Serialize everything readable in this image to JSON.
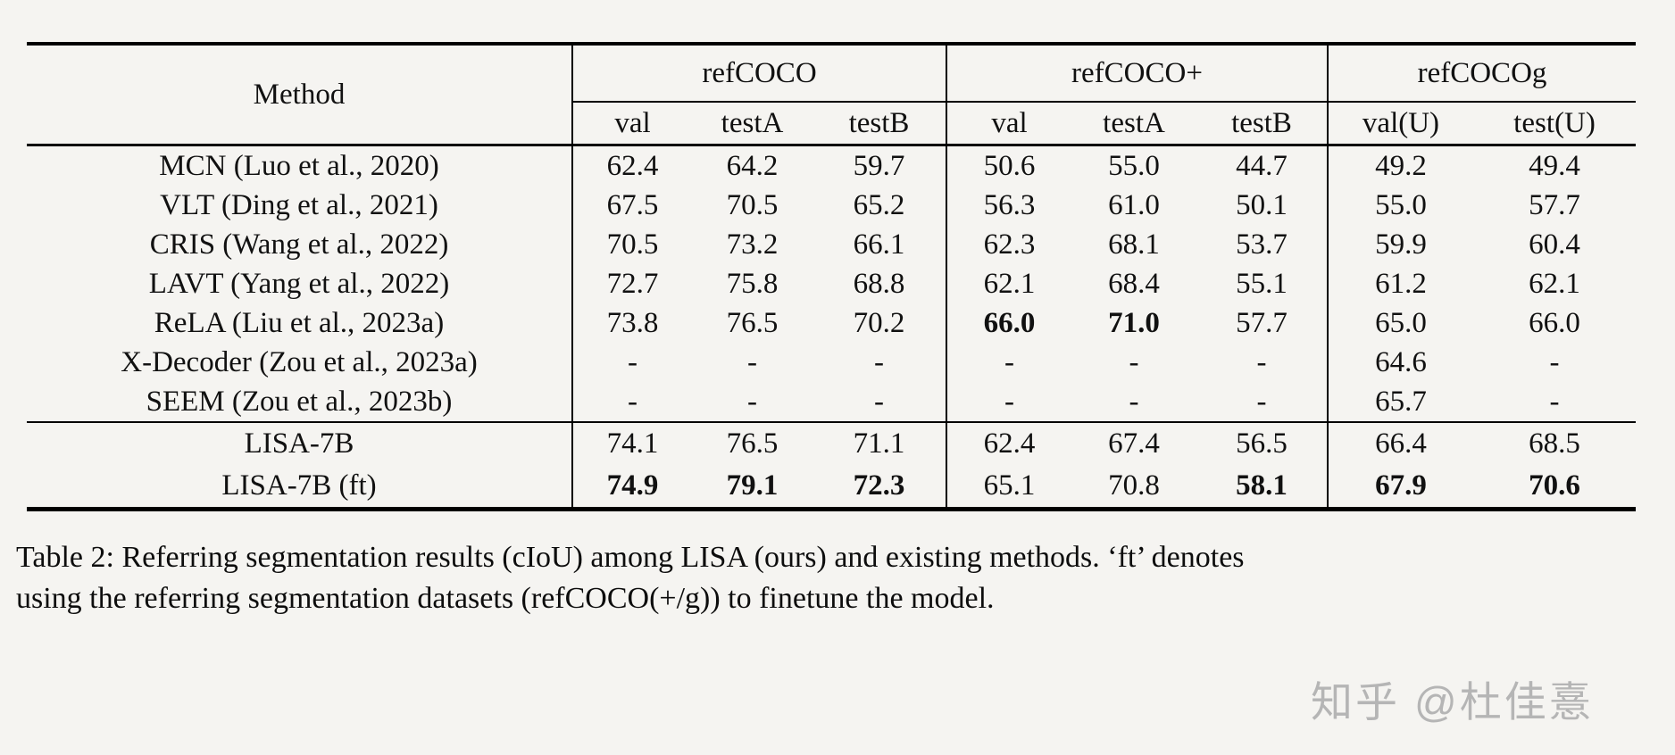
{
  "table": {
    "corner_label": "Method",
    "groups": [
      {
        "label": "refCOCO",
        "cols": [
          "val",
          "testA",
          "testB"
        ]
      },
      {
        "label": "refCOCO+",
        "cols": [
          "val",
          "testA",
          "testB"
        ]
      },
      {
        "label": "refCOCOg",
        "cols": [
          "val(U)",
          "test(U)"
        ]
      }
    ],
    "block1_rows": [
      {
        "method": "MCN (Luo et al., 2020)",
        "values": [
          "62.4",
          "64.2",
          "59.7",
          "50.6",
          "55.0",
          "44.7",
          "49.2",
          "49.4"
        ],
        "bold": []
      },
      {
        "method": "VLT (Ding et al., 2021)",
        "values": [
          "67.5",
          "70.5",
          "65.2",
          "56.3",
          "61.0",
          "50.1",
          "55.0",
          "57.7"
        ],
        "bold": []
      },
      {
        "method": "CRIS (Wang et al., 2022)",
        "values": [
          "70.5",
          "73.2",
          "66.1",
          "62.3",
          "68.1",
          "53.7",
          "59.9",
          "60.4"
        ],
        "bold": []
      },
      {
        "method": "LAVT (Yang et al., 2022)",
        "values": [
          "72.7",
          "75.8",
          "68.8",
          "62.1",
          "68.4",
          "55.1",
          "61.2",
          "62.1"
        ],
        "bold": []
      },
      {
        "method": "ReLA (Liu et al., 2023a)",
        "values": [
          "73.8",
          "76.5",
          "70.2",
          "66.0",
          "71.0",
          "57.7",
          "65.0",
          "66.0"
        ],
        "bold": [
          3,
          4
        ]
      },
      {
        "method": "X-Decoder (Zou et al., 2023a)",
        "values": [
          "-",
          "-",
          "-",
          "-",
          "-",
          "-",
          "64.6",
          "-"
        ],
        "bold": []
      },
      {
        "method": "SEEM (Zou et al., 2023b)",
        "values": [
          "-",
          "-",
          "-",
          "-",
          "-",
          "-",
          "65.7",
          "-"
        ],
        "bold": []
      }
    ],
    "block2_rows": [
      {
        "method": "LISA-7B",
        "values": [
          "74.1",
          "76.5",
          "71.1",
          "62.4",
          "67.4",
          "56.5",
          "66.4",
          "68.5"
        ],
        "bold": []
      },
      {
        "method": "LISA-7B (ft)",
        "values": [
          "74.9",
          "79.1",
          "72.3",
          "65.1",
          "70.8",
          "58.1",
          "67.9",
          "70.6"
        ],
        "bold": [
          0,
          1,
          2,
          5,
          6,
          7
        ]
      }
    ]
  },
  "caption": {
    "line1": "Table 2: Referring segmentation results (cIoU) among LISA (ours) and existing methods. ‘ft’ denotes",
    "line2": "using the referring segmentation datasets (refCOCO(+/g)) to finetune the model."
  },
  "watermark": {
    "text": "知乎 @杜佳憙",
    "color": "#b5b5b5"
  },
  "colors": {
    "background": "#f5f4f1",
    "rule": "#000000",
    "text": "#111111"
  }
}
